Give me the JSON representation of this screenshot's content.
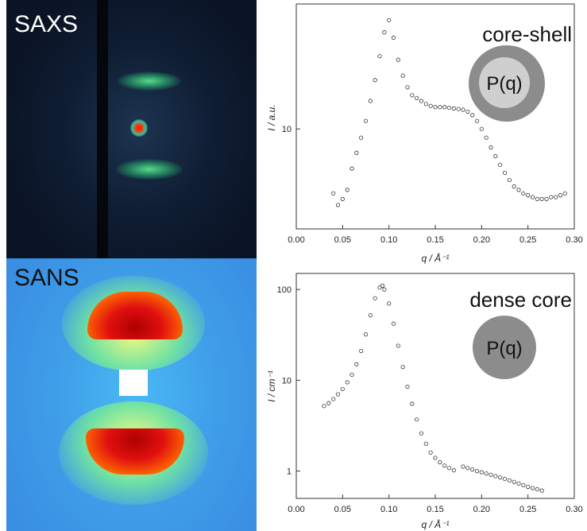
{
  "panels": {
    "saxs_label": "SAXS",
    "sans_label": "SANS"
  },
  "colors": {
    "saxs_background": "#0f1d33",
    "saxs_arc": "#3fc47e",
    "sans_background": "#3f9de8",
    "sans_peak": "#c81010",
    "shell_color": "#8c8c8c",
    "core_color": "#cfcfcf"
  },
  "chart_data": [
    {
      "type": "scatter",
      "title": "core-shell",
      "inset_label": "P(q)",
      "xlabel": "q / Å⁻¹",
      "ylabel": "I / a.u.",
      "xlim": [
        0.0,
        0.3
      ],
      "ylim": [
        3,
        45
      ],
      "log_y": true,
      "x_ticks": [
        "0.00",
        "0.05",
        "0.10",
        "0.15",
        "0.20",
        "0.25",
        "0.30"
      ],
      "y_ticks": [
        "10"
      ],
      "series": [
        {
          "x": [
            0.04,
            0.045,
            0.05,
            0.055,
            0.06,
            0.065,
            0.07,
            0.075,
            0.08,
            0.085,
            0.09,
            0.095,
            0.1,
            0.105,
            0.11,
            0.115,
            0.12,
            0.125,
            0.13,
            0.135,
            0.14,
            0.145,
            0.15,
            0.155,
            0.16,
            0.165,
            0.17,
            0.175,
            0.18,
            0.185,
            0.19,
            0.195,
            0.2,
            0.205,
            0.21,
            0.215,
            0.22,
            0.225,
            0.23,
            0.235,
            0.24,
            0.245,
            0.25,
            0.255,
            0.26,
            0.265,
            0.27,
            0.275,
            0.28,
            0.285,
            0.29
          ],
          "y": [
            4.6,
            4.0,
            4.3,
            4.8,
            6.2,
            7.5,
            9.0,
            11.0,
            14.0,
            18.0,
            24.0,
            32.0,
            37.0,
            30.0,
            23.0,
            19.0,
            16.5,
            15.0,
            14.5,
            14.0,
            13.5,
            13.2,
            13.0,
            13.0,
            13.0,
            12.9,
            12.8,
            12.7,
            12.6,
            12.3,
            11.8,
            11.0,
            10.0,
            9.0,
            8.0,
            7.2,
            6.5,
            5.9,
            5.4,
            5.0,
            4.8,
            4.6,
            4.5,
            4.4,
            4.3,
            4.3,
            4.3,
            4.4,
            4.4,
            4.5,
            4.6
          ]
        }
      ]
    },
    {
      "type": "scatter",
      "title": "dense core",
      "inset_label": "P(q)",
      "xlabel": "q / Å⁻¹",
      "ylabel": "I / cm⁻¹",
      "xlim": [
        0.0,
        0.3
      ],
      "ylim": [
        0.5,
        150
      ],
      "log_y": true,
      "x_ticks": [
        "0.00",
        "0.05",
        "0.10",
        "0.15",
        "0.20",
        "0.25",
        "0.30"
      ],
      "y_ticks": [
        "1",
        "10",
        "100"
      ],
      "series": [
        {
          "x": [
            0.03,
            0.035,
            0.04,
            0.045,
            0.05,
            0.055,
            0.06,
            0.065,
            0.07,
            0.075,
            0.08,
            0.085,
            0.09,
            0.093,
            0.095,
            0.1,
            0.105,
            0.11,
            0.115,
            0.12,
            0.125,
            0.13,
            0.135,
            0.14,
            0.145,
            0.15,
            0.155,
            0.16,
            0.165,
            0.17,
            0.18,
            0.185,
            0.19,
            0.195,
            0.2,
            0.205,
            0.21,
            0.215,
            0.22,
            0.225,
            0.23,
            0.235,
            0.24,
            0.245,
            0.25,
            0.255,
            0.26,
            0.265
          ],
          "y": [
            5.2,
            5.6,
            6.2,
            7.0,
            8.0,
            9.5,
            11.5,
            15.0,
            21.0,
            32.0,
            52.0,
            80.0,
            105.0,
            110.0,
            100.0,
            70.0,
            42.0,
            24.0,
            14.0,
            8.5,
            5.5,
            3.7,
            2.6,
            2.0,
            1.6,
            1.4,
            1.25,
            1.15,
            1.08,
            1.02,
            1.12,
            1.08,
            1.04,
            1.0,
            0.97,
            0.94,
            0.91,
            0.88,
            0.85,
            0.82,
            0.79,
            0.76,
            0.73,
            0.7,
            0.67,
            0.65,
            0.63,
            0.61
          ]
        }
      ]
    }
  ]
}
